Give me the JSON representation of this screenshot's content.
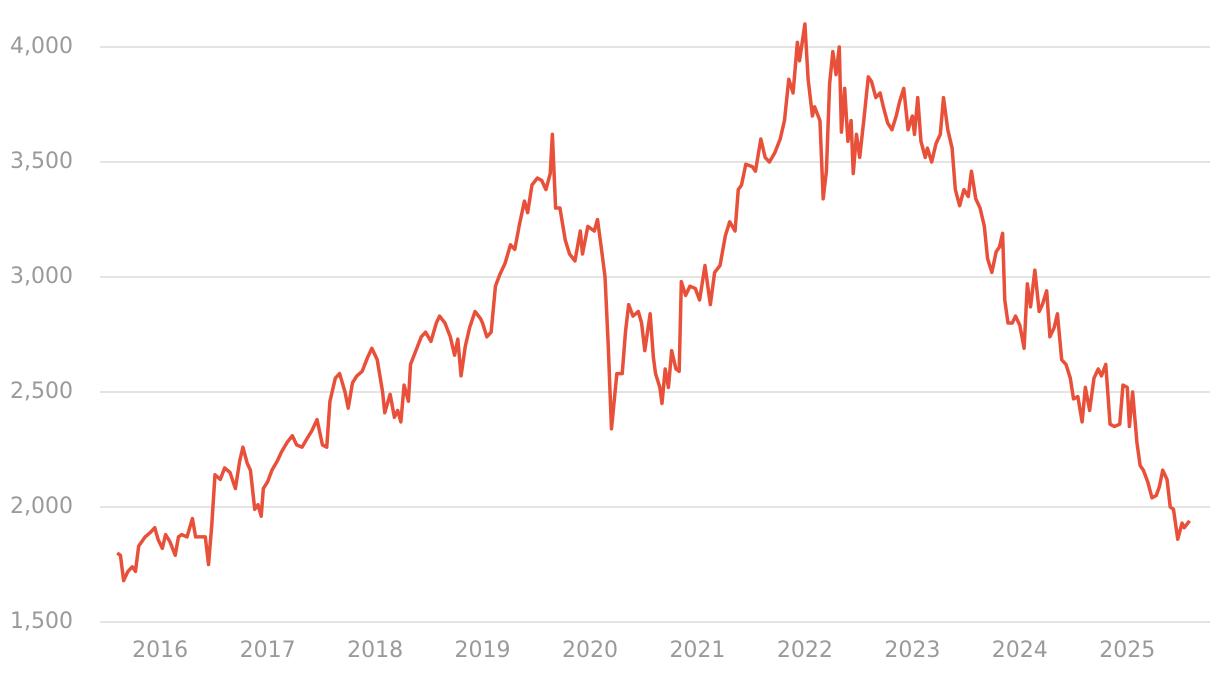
{
  "chart_data": {
    "type": "line",
    "color": "#e8503a",
    "grid": true,
    "xlim": [
      2015.44,
      2025.77
    ],
    "ylim": [
      1500,
      4100
    ],
    "xticks": [
      2016,
      2017,
      2018,
      2019,
      2020,
      2021,
      2022,
      2023,
      2024,
      2025
    ],
    "yticks": [
      {
        "value": 1500,
        "label": "1,500"
      },
      {
        "value": 2000,
        "label": "2,000"
      },
      {
        "value": 2500,
        "label": "2,500"
      },
      {
        "value": 3000,
        "label": "3,000"
      },
      {
        "value": 3500,
        "label": "3,500"
      },
      {
        "value": 4000,
        "label": "4,000"
      }
    ],
    "x": [
      2015.6,
      2015.63,
      2015.66,
      2015.7,
      2015.74,
      2015.77,
      2015.8,
      2015.86,
      2015.91,
      2015.95,
      2015.98,
      2016.02,
      2016.05,
      2016.09,
      2016.14,
      2016.17,
      2016.2,
      2016.25,
      2016.3,
      2016.33,
      2016.37,
      2016.42,
      2016.45,
      2016.48,
      2016.51,
      2016.56,
      2016.6,
      2016.65,
      2016.7,
      2016.74,
      2016.77,
      2016.81,
      2016.84,
      2016.88,
      2016.91,
      2016.94,
      2016.96,
      2017.0,
      2017.04,
      2017.09,
      2017.13,
      2017.18,
      2017.23,
      2017.27,
      2017.32,
      2017.37,
      2017.41,
      2017.46,
      2017.51,
      2017.55,
      2017.58,
      2017.63,
      2017.67,
      2017.72,
      2017.75,
      2017.79,
      2017.83,
      2017.88,
      2017.93,
      2017.97,
      2018.02,
      2018.07,
      2018.09,
      2018.14,
      2018.18,
      2018.21,
      2018.24,
      2018.27,
      2018.31,
      2018.33,
      2018.38,
      2018.43,
      2018.47,
      2018.52,
      2018.57,
      2018.6,
      2018.65,
      2018.7,
      2018.74,
      2018.77,
      2018.8,
      2018.84,
      2018.88,
      2018.93,
      2018.98,
      2019.0,
      2019.04,
      2019.08,
      2019.12,
      2019.16,
      2019.21,
      2019.26,
      2019.3,
      2019.34,
      2019.39,
      2019.42,
      2019.46,
      2019.51,
      2019.55,
      2019.59,
      2019.63,
      2019.65,
      2019.68,
      2019.72,
      2019.77,
      2019.81,
      2019.86,
      2019.91,
      2019.93,
      2019.98,
      2020.04,
      2020.07,
      2020.11,
      2020.14,
      2020.17,
      2020.2,
      2020.25,
      2020.3,
      2020.33,
      2020.36,
      2020.4,
      2020.45,
      2020.48,
      2020.51,
      2020.56,
      2020.59,
      2020.61,
      2020.65,
      2020.67,
      2020.7,
      2020.73,
      2020.76,
      2020.8,
      2020.83,
      2020.85,
      2020.89,
      2020.93,
      2020.98,
      2021.02,
      2021.07,
      2021.12,
      2021.16,
      2021.21,
      2021.26,
      2021.3,
      2021.35,
      2021.38,
      2021.41,
      2021.45,
      2021.51,
      2021.54,
      2021.59,
      2021.63,
      2021.67,
      2021.72,
      2021.77,
      2021.81,
      2021.85,
      2021.89,
      2021.93,
      2021.95,
      2022.0,
      2022.03,
      2022.07,
      2022.09,
      2022.14,
      2022.17,
      2022.2,
      2022.23,
      2022.26,
      2022.29,
      2022.32,
      2022.34,
      2022.37,
      2022.4,
      2022.43,
      2022.45,
      2022.48,
      2022.51,
      2022.55,
      2022.59,
      2022.62,
      2022.66,
      2022.7,
      2022.73,
      2022.77,
      2022.81,
      2022.85,
      2022.88,
      2022.92,
      2022.96,
      2023.0,
      2023.02,
      2023.05,
      2023.08,
      2023.12,
      2023.14,
      2023.18,
      2023.22,
      2023.26,
      2023.29,
      2023.33,
      2023.37,
      2023.4,
      2023.44,
      2023.48,
      2023.52,
      2023.55,
      2023.59,
      2023.63,
      2023.67,
      2023.7,
      2023.74,
      2023.78,
      2023.81,
      2023.84,
      2023.86,
      2023.89,
      2023.93,
      2023.96,
      2024.0,
      2024.04,
      2024.07,
      2024.1,
      2024.14,
      2024.18,
      2024.21,
      2024.25,
      2024.28,
      2024.32,
      2024.35,
      2024.39,
      2024.43,
      2024.47,
      2024.5,
      2024.54,
      2024.58,
      2024.61,
      2024.65,
      2024.69,
      2024.73,
      2024.76,
      2024.8,
      2024.84,
      2024.88,
      2024.93,
      2024.96,
      2025.0,
      2025.02,
      2025.05,
      2025.09,
      2025.12,
      2025.15,
      2025.19,
      2025.23,
      2025.27,
      2025.3,
      2025.33,
      2025.37,
      2025.4,
      2025.43,
      2025.47,
      2025.51,
      2025.53,
      2025.58
    ],
    "values": [
      1800,
      1790,
      1680,
      1720,
      1740,
      1720,
      1830,
      1870,
      1890,
      1910,
      1860,
      1820,
      1880,
      1850,
      1790,
      1870,
      1880,
      1870,
      1950,
      1870,
      1870,
      1870,
      1750,
      1920,
      2140,
      2120,
      2170,
      2150,
      2080,
      2200,
      2260,
      2190,
      2160,
      1990,
      2010,
      1960,
      2080,
      2110,
      2160,
      2200,
      2240,
      2280,
      2310,
      2270,
      2260,
      2300,
      2330,
      2380,
      2270,
      2260,
      2460,
      2560,
      2580,
      2500,
      2430,
      2540,
      2570,
      2590,
      2650,
      2690,
      2640,
      2500,
      2410,
      2490,
      2390,
      2420,
      2370,
      2530,
      2460,
      2620,
      2680,
      2740,
      2760,
      2720,
      2800,
      2830,
      2800,
      2740,
      2660,
      2730,
      2570,
      2700,
      2780,
      2850,
      2820,
      2800,
      2740,
      2760,
      2960,
      3010,
      3060,
      3140,
      3120,
      3220,
      3330,
      3280,
      3400,
      3430,
      3420,
      3380,
      3450,
      3620,
      3300,
      3300,
      3160,
      3100,
      3070,
      3200,
      3100,
      3220,
      3200,
      3250,
      3110,
      3000,
      2700,
      2340,
      2580,
      2580,
      2760,
      2880,
      2830,
      2850,
      2800,
      2680,
      2840,
      2650,
      2580,
      2520,
      2450,
      2600,
      2520,
      2680,
      2600,
      2590,
      2980,
      2920,
      2960,
      2950,
      2900,
      3050,
      2880,
      3020,
      3050,
      3180,
      3240,
      3200,
      3380,
      3400,
      3490,
      3480,
      3460,
      3600,
      3520,
      3500,
      3540,
      3600,
      3680,
      3860,
      3800,
      4020,
      3940,
      4100,
      3860,
      3700,
      3740,
      3680,
      3340,
      3460,
      3840,
      3980,
      3880,
      4000,
      3630,
      3820,
      3590,
      3680,
      3450,
      3620,
      3520,
      3690,
      3870,
      3850,
      3780,
      3800,
      3740,
      3670,
      3640,
      3700,
      3760,
      3820,
      3640,
      3700,
      3620,
      3780,
      3590,
      3520,
      3560,
      3500,
      3580,
      3620,
      3780,
      3640,
      3560,
      3380,
      3310,
      3380,
      3350,
      3460,
      3340,
      3300,
      3220,
      3080,
      3020,
      3110,
      3130,
      3190,
      2900,
      2800,
      2800,
      2830,
      2790,
      2690,
      2970,
      2870,
      3030,
      2850,
      2880,
      2940,
      2740,
      2780,
      2840,
      2640,
      2620,
      2560,
      2470,
      2480,
      2370,
      2520,
      2420,
      2560,
      2600,
      2570,
      2620,
      2360,
      2350,
      2360,
      2530,
      2520,
      2350,
      2500,
      2280,
      2180,
      2160,
      2110,
      2040,
      2050,
      2090,
      2160,
      2120,
      2000,
      1990,
      1860,
      1930,
      1910,
      1940
    ]
  }
}
